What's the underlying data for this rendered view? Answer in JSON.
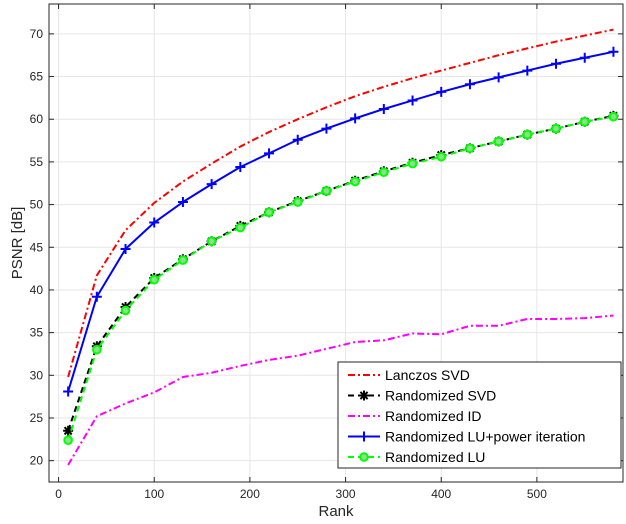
{
  "chart_data": {
    "type": "line",
    "title": "",
    "xlabel": "Rank",
    "ylabel": "PSNR [dB]",
    "xlim": [
      -10,
      590
    ],
    "ylim": [
      17.5,
      73.5
    ],
    "xticks": [
      0,
      100,
      200,
      300,
      400,
      500
    ],
    "yticks": [
      20,
      25,
      30,
      35,
      40,
      45,
      50,
      55,
      60,
      65,
      70
    ],
    "grid": true,
    "legend_position": "bottom-right",
    "series": [
      {
        "name": "Lanczos SVD",
        "color": "#ff0000",
        "line_style": "dash-dot",
        "marker": "none",
        "x": [
          10,
          40,
          70,
          100,
          130,
          160,
          190,
          220,
          250,
          280,
          310,
          340,
          370,
          400,
          430,
          460,
          490,
          520,
          550,
          580
        ],
        "y": [
          29.8,
          41.7,
          47.0,
          50.2,
          52.7,
          54.8,
          56.8,
          58.5,
          60.0,
          61.4,
          62.7,
          63.8,
          64.8,
          65.7,
          66.6,
          67.5,
          68.3,
          69.1,
          69.8,
          70.5
        ]
      },
      {
        "name": "Randomized SVD",
        "color": "#000000",
        "line_style": "dashed",
        "marker": "asterisk",
        "x": [
          10,
          40,
          70,
          100,
          130,
          160,
          190,
          220,
          250,
          280,
          310,
          340,
          370,
          400,
          430,
          460,
          490,
          520,
          550,
          580
        ],
        "y": [
          23.5,
          33.4,
          38.0,
          41.4,
          43.6,
          45.7,
          47.5,
          49.1,
          50.4,
          51.6,
          52.8,
          53.9,
          54.9,
          55.8,
          56.6,
          57.4,
          58.2,
          58.9,
          59.7,
          60.4
        ]
      },
      {
        "name": "Randomized ID",
        "color": "#ff00ff",
        "line_style": "dash-dot",
        "marker": "none",
        "x": [
          10,
          40,
          70,
          100,
          130,
          160,
          190,
          220,
          250,
          280,
          310,
          340,
          370,
          400,
          430,
          460,
          490,
          520,
          550,
          580
        ],
        "y": [
          19.5,
          25.2,
          26.7,
          28.0,
          29.8,
          30.3,
          31.1,
          31.8,
          32.3,
          33.1,
          33.9,
          34.1,
          34.9,
          34.8,
          35.8,
          35.8,
          36.6,
          36.6,
          36.7,
          37.0
        ]
      },
      {
        "name": "Randomized LU+power iteration",
        "color": "#0000ff",
        "line_style": "solid",
        "marker": "plus",
        "x": [
          10,
          40,
          70,
          100,
          130,
          160,
          190,
          220,
          250,
          280,
          310,
          340,
          370,
          400,
          430,
          460,
          490,
          520,
          550,
          580
        ],
        "y": [
          28.1,
          39.2,
          44.8,
          47.9,
          50.3,
          52.4,
          54.4,
          56.0,
          57.6,
          58.9,
          60.1,
          61.2,
          62.2,
          63.2,
          64.1,
          64.9,
          65.7,
          66.5,
          67.2,
          67.9
        ]
      },
      {
        "name": "Randomized LU",
        "color": "#00ff00",
        "line_style": "dashed",
        "marker": "circle",
        "x": [
          10,
          40,
          70,
          100,
          130,
          160,
          190,
          220,
          250,
          280,
          310,
          340,
          370,
          400,
          430,
          460,
          490,
          520,
          550,
          580
        ],
        "y": [
          22.4,
          33.0,
          37.6,
          41.2,
          43.5,
          45.7,
          47.3,
          49.1,
          50.3,
          51.6,
          52.7,
          53.8,
          54.8,
          55.6,
          56.6,
          57.4,
          58.2,
          58.9,
          59.7,
          60.3
        ]
      }
    ]
  }
}
